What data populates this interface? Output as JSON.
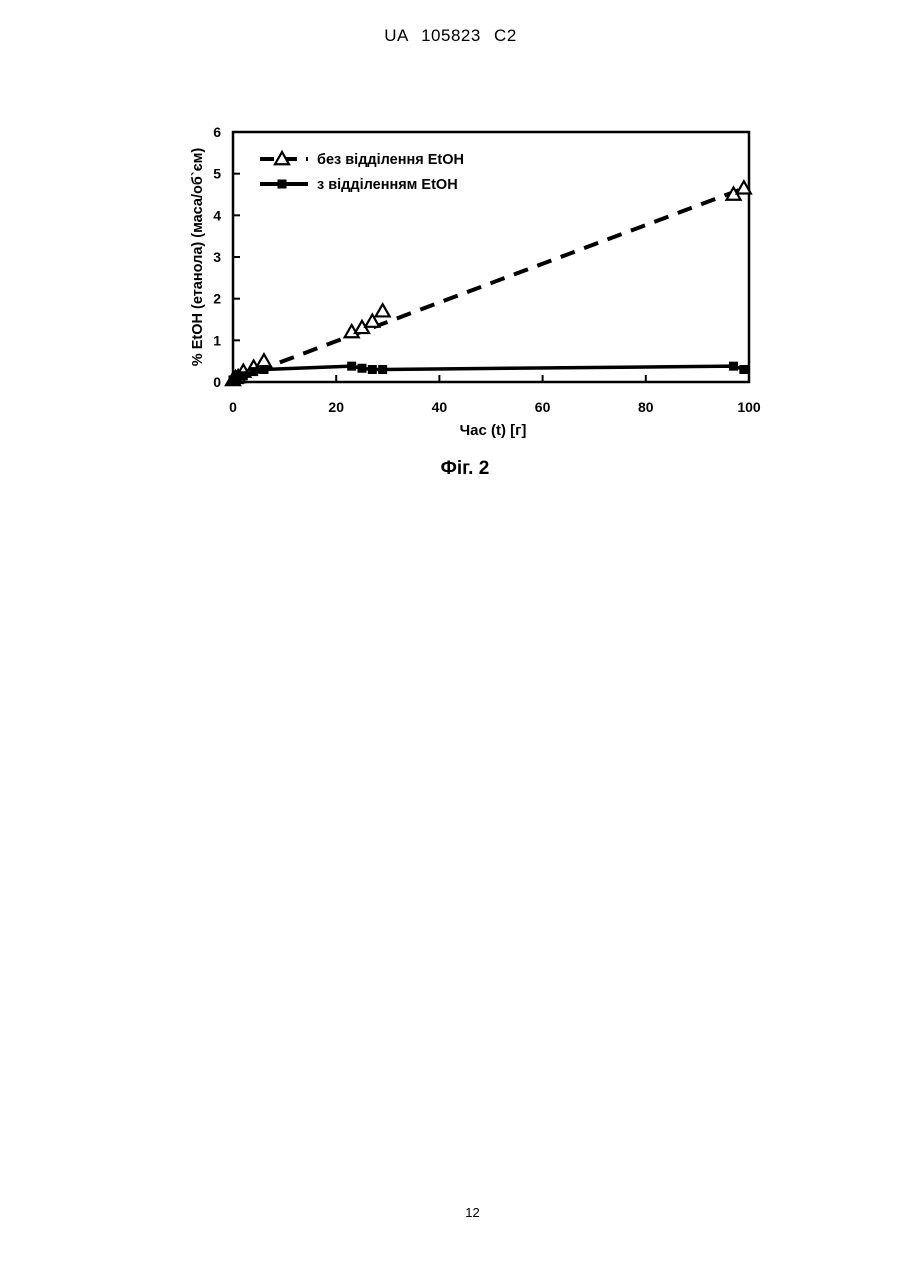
{
  "header": {
    "doc_id": "UA   105823   C2"
  },
  "figure": {
    "caption": "Фіг. 2"
  },
  "page": {
    "number": "12"
  },
  "chart_data": {
    "type": "line",
    "xlabel": "Час (t) [г]",
    "ylabel": "% EtOH (етанола) (маса/об`єм)",
    "xlim": [
      0,
      100
    ],
    "ylim": [
      0,
      6
    ],
    "xticks": [
      "0",
      "20",
      "40",
      "60",
      "80",
      "100"
    ],
    "yticks": [
      "0",
      "1",
      "2",
      "3",
      "4",
      "5",
      "6"
    ],
    "grid": false,
    "legend_position": "top-left",
    "series": [
      {
        "name": "без відділення EtOH",
        "marker": "triangle-open",
        "line": "dashed",
        "x": [
          0,
          0.5,
          1,
          2,
          4,
          6,
          23,
          25,
          27,
          29,
          97,
          99
        ],
        "y": [
          0.05,
          0.1,
          0.12,
          0.25,
          0.35,
          0.5,
          1.2,
          1.3,
          1.45,
          1.7,
          4.5,
          4.65
        ]
      },
      {
        "name": "з відділенням EtOH",
        "marker": "square-filled",
        "line": "solid",
        "x": [
          0,
          0.5,
          1,
          2,
          4,
          6,
          23,
          25,
          27,
          29,
          97,
          99
        ],
        "y": [
          0.05,
          0.08,
          0.1,
          0.15,
          0.25,
          0.3,
          0.38,
          0.33,
          0.3,
          0.3,
          0.38,
          0.3
        ]
      }
    ]
  }
}
